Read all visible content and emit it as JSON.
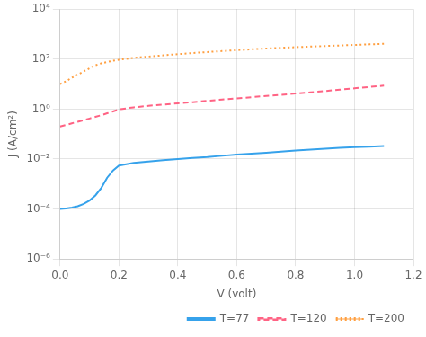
{
  "chart_data": {
    "type": "line",
    "xlabel": "V (volt)",
    "ylabel": "J (A/cm²)",
    "x": [
      0.0,
      0.02,
      0.04,
      0.06,
      0.08,
      0.1,
      0.12,
      0.14,
      0.16,
      0.18,
      0.2,
      0.25,
      0.3,
      0.35,
      0.4,
      0.45,
      0.5,
      0.55,
      0.6,
      0.65,
      0.7,
      0.75,
      0.8,
      0.85,
      0.9,
      0.95,
      1.0,
      1.05,
      1.1
    ],
    "series": [
      {
        "name": "T=77",
        "line_style": "solid",
        "values": [
          0.0001,
          0.000105,
          0.000115,
          0.00013,
          0.00016,
          0.00022,
          0.00035,
          0.0007,
          0.0018,
          0.0035,
          0.0055,
          0.007,
          0.008,
          0.009,
          0.01,
          0.011,
          0.012,
          0.0135,
          0.015,
          0.0165,
          0.018,
          0.02,
          0.022,
          0.024,
          0.026,
          0.028,
          0.03,
          0.0315,
          0.033
        ]
      },
      {
        "name": "T=120",
        "line_style": "dashed",
        "values": [
          0.2,
          0.23,
          0.27,
          0.31,
          0.36,
          0.42,
          0.49,
          0.57,
          0.68,
          0.81,
          0.97,
          1.18,
          1.35,
          1.52,
          1.7,
          1.9,
          2.15,
          2.4,
          2.7,
          3.0,
          3.35,
          3.75,
          4.2,
          4.7,
          5.3,
          6.0,
          6.8,
          7.7,
          8.7
        ]
      },
      {
        "name": "T=200",
        "line_style": "dotted",
        "values": [
          10.0,
          13.0,
          18.0,
          24.0,
          32.0,
          43.0,
          57.0,
          68.0,
          77.0,
          86.0,
          95.0,
          112.0,
          127.0,
          142.0,
          158.0,
          175.0,
          192.0,
          210.0,
          228.0,
          247.0,
          265.0,
          283.0,
          301.0,
          318.0,
          335.0,
          352.0,
          370.0,
          390.0,
          410.0
        ]
      }
    ],
    "xlim": [
      0,
      1.2
    ],
    "xticks": [
      {
        "value": 0,
        "label": "0.0"
      },
      0.2,
      0.4,
      0.6,
      0.8,
      {
        "value": 1.0,
        "label": "1.0"
      },
      1.2
    ],
    "ylim": [
      1e-06,
      10000
    ],
    "yticks": [
      {
        "value": 1e-06,
        "label": "10⁻⁶"
      },
      {
        "value": 0.0001,
        "label": "10⁻⁴"
      },
      {
        "value": 0.01,
        "label": "10⁻²"
      },
      {
        "value": 1,
        "label": "10⁰"
      },
      {
        "value": 100,
        "label": "10²"
      },
      {
        "value": 10000,
        "label": "10⁴"
      }
    ],
    "log": "y",
    "grid": true,
    "legend": "lower right"
  }
}
